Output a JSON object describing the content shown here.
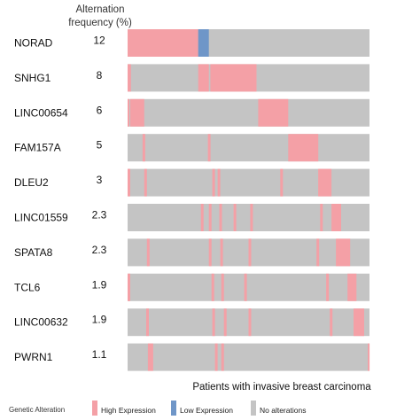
{
  "header": {
    "line1": "Alternation",
    "line2": "frequency (%)"
  },
  "chart_data": {
    "type": "oncoprint",
    "xlabel": "Patients with invasive breast carcinoma",
    "genes": [
      {
        "name": "NORAD",
        "frequency": "12",
        "alterations": [
          {
            "start": 0.0,
            "end": 0.292,
            "type": "high"
          },
          {
            "start": 0.292,
            "end": 0.336,
            "type": "low"
          }
        ]
      },
      {
        "name": "SNHG1",
        "frequency": "8",
        "alterations": [
          {
            "start": 0.0,
            "end": 0.014,
            "type": "high"
          },
          {
            "start": 0.292,
            "end": 0.336,
            "type": "high"
          },
          {
            "start": 0.342,
            "end": 0.533,
            "type": "high"
          }
        ]
      },
      {
        "name": "LINC00654",
        "frequency": "6",
        "alterations": [
          {
            "start": 0.0,
            "end": 0.007,
            "type": "high"
          },
          {
            "start": 0.011,
            "end": 0.069,
            "type": "high"
          },
          {
            "start": 0.54,
            "end": 0.664,
            "type": "high"
          }
        ]
      },
      {
        "name": "FAM157A",
        "frequency": "5",
        "alterations": [
          {
            "start": 0.062,
            "end": 0.073,
            "type": "high"
          },
          {
            "start": 0.332,
            "end": 0.343,
            "type": "high"
          },
          {
            "start": 0.664,
            "end": 0.788,
            "type": "high"
          }
        ]
      },
      {
        "name": "DLEU2",
        "frequency": "3",
        "alterations": [
          {
            "start": 0.0,
            "end": 0.011,
            "type": "high"
          },
          {
            "start": 0.069,
            "end": 0.08,
            "type": "high"
          },
          {
            "start": 0.35,
            "end": 0.361,
            "type": "high"
          },
          {
            "start": 0.372,
            "end": 0.383,
            "type": "high"
          },
          {
            "start": 0.631,
            "end": 0.642,
            "type": "high"
          },
          {
            "start": 0.788,
            "end": 0.843,
            "type": "high"
          }
        ]
      },
      {
        "name": "LINC01559",
        "frequency": "2.3",
        "alterations": [
          {
            "start": 0.303,
            "end": 0.314,
            "type": "high"
          },
          {
            "start": 0.336,
            "end": 0.347,
            "type": "high"
          },
          {
            "start": 0.379,
            "end": 0.39,
            "type": "high"
          },
          {
            "start": 0.438,
            "end": 0.449,
            "type": "high"
          },
          {
            "start": 0.507,
            "end": 0.518,
            "type": "high"
          },
          {
            "start": 0.796,
            "end": 0.807,
            "type": "high"
          },
          {
            "start": 0.843,
            "end": 0.883,
            "type": "high"
          }
        ]
      },
      {
        "name": "SPATA8",
        "frequency": "2.3",
        "alterations": [
          {
            "start": 0.08,
            "end": 0.091,
            "type": "high"
          },
          {
            "start": 0.336,
            "end": 0.347,
            "type": "high"
          },
          {
            "start": 0.383,
            "end": 0.394,
            "type": "high"
          },
          {
            "start": 0.5,
            "end": 0.511,
            "type": "high"
          },
          {
            "start": 0.781,
            "end": 0.792,
            "type": "high"
          },
          {
            "start": 0.861,
            "end": 0.92,
            "type": "high"
          }
        ]
      },
      {
        "name": "TCL6",
        "frequency": "1.9",
        "alterations": [
          {
            "start": 0.0,
            "end": 0.011,
            "type": "high"
          },
          {
            "start": 0.347,
            "end": 0.358,
            "type": "high"
          },
          {
            "start": 0.387,
            "end": 0.398,
            "type": "high"
          },
          {
            "start": 0.482,
            "end": 0.493,
            "type": "high"
          },
          {
            "start": 0.821,
            "end": 0.832,
            "type": "high"
          },
          {
            "start": 0.909,
            "end": 0.946,
            "type": "high"
          }
        ]
      },
      {
        "name": "LINC00632",
        "frequency": "1.9",
        "alterations": [
          {
            "start": 0.077,
            "end": 0.088,
            "type": "high"
          },
          {
            "start": 0.35,
            "end": 0.361,
            "type": "high"
          },
          {
            "start": 0.398,
            "end": 0.409,
            "type": "high"
          },
          {
            "start": 0.5,
            "end": 0.511,
            "type": "high"
          },
          {
            "start": 0.836,
            "end": 0.847,
            "type": "high"
          },
          {
            "start": 0.934,
            "end": 0.978,
            "type": "high"
          }
        ]
      },
      {
        "name": "PWRN1",
        "frequency": "1.1",
        "alterations": [
          {
            "start": 0.084,
            "end": 0.106,
            "type": "high"
          },
          {
            "start": 0.361,
            "end": 0.372,
            "type": "high"
          },
          {
            "start": 0.387,
            "end": 0.398,
            "type": "high"
          },
          {
            "start": 0.993,
            "end": 1.0,
            "type": "high"
          }
        ]
      }
    ],
    "legend": {
      "title": "Genetic Alteration",
      "items": [
        {
          "key": "high",
          "label": "High Expression",
          "color": "#f4a0a6"
        },
        {
          "key": "low",
          "label": "Low Expression",
          "color": "#6f96c8"
        },
        {
          "key": "none",
          "label": "No alterations",
          "color": "#c4c4c4"
        }
      ]
    },
    "colors": {
      "background_track": "#c4c4c4"
    }
  }
}
